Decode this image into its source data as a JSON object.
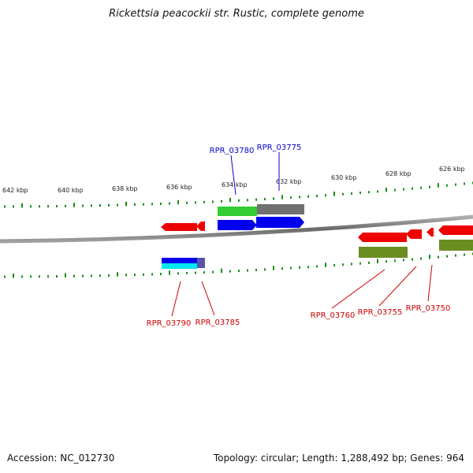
{
  "title": "Rickettsia peacockii str. Rustic, complete genome",
  "colors": {
    "tick": "#1a8f1a",
    "backbone": "#808080",
    "gene_forward_label": "#0000cc",
    "gene_reverse_label": "#cc0000",
    "red": "#ee0000",
    "blue": "#0000ee",
    "green": "#33cc33",
    "gray": "#707070",
    "olive": "#6b8e23",
    "cyan": "#00e5ee",
    "slate": "#5555aa"
  },
  "scale_labels": [
    "642 kbp",
    "640 kbp",
    "638 kbp",
    "636 kbp",
    "634 kbp",
    "632 kbp",
    "630 kbp",
    "628 kbp",
    "626 kbp"
  ],
  "genes": [
    {
      "id": "RPR_03780",
      "strand": "forward"
    },
    {
      "id": "RPR_03775",
      "strand": "forward"
    },
    {
      "id": "RPR_03790",
      "strand": "reverse"
    },
    {
      "id": "RPR_03785",
      "strand": "reverse"
    },
    {
      "id": "RPR_03760",
      "strand": "reverse"
    },
    {
      "id": "RPR_03755",
      "strand": "reverse"
    },
    {
      "id": "RPR_03750",
      "strand": "reverse"
    }
  ],
  "footer": {
    "accession": "Accession: NC_012730",
    "summary": "Topology: circular; Length: 1,288,492 bp; Genes: 964"
  }
}
